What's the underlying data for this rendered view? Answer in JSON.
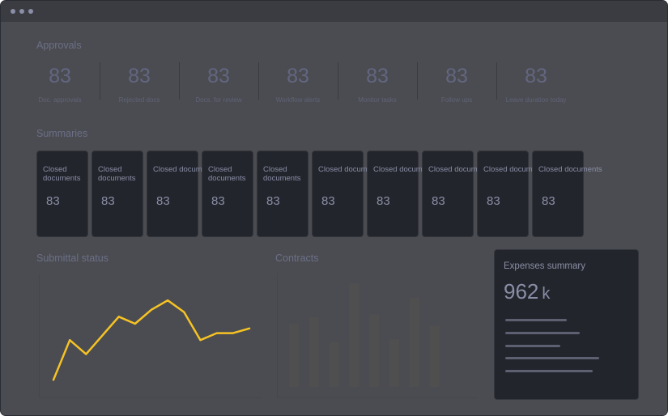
{
  "approvals": {
    "title": "Approvals",
    "kpis": [
      {
        "value": "83",
        "label": "Doc. approvals"
      },
      {
        "value": "83",
        "label": "Rejected docs"
      },
      {
        "value": "83",
        "label": "Docs. for review"
      },
      {
        "value": "83",
        "label": "Workflow alerts"
      },
      {
        "value": "83",
        "label": "Monitor tasks"
      },
      {
        "value": "83",
        "label": "Follow ups"
      },
      {
        "value": "83",
        "label": "Leave duration today"
      }
    ]
  },
  "summaries": {
    "title": "Summaries",
    "cards": [
      {
        "label": "Closed documents",
        "value": "83"
      },
      {
        "label": "Closed documents",
        "value": "83"
      },
      {
        "label": "Closed docum",
        "value": "83"
      },
      {
        "label": "Closed documents",
        "value": "83"
      },
      {
        "label": "Closed documents",
        "value": "83"
      },
      {
        "label": "Closed documents",
        "value": "83"
      },
      {
        "label": "Closed docum",
        "value": "83"
      },
      {
        "label": "Closed documents",
        "value": "83"
      },
      {
        "label": "Closed docum",
        "value": "83"
      },
      {
        "label": "Closed documents",
        "value": "83"
      }
    ]
  },
  "submittal": {
    "title": "Submittal status",
    "series": [
      3,
      20,
      14,
      22,
      30,
      27,
      33,
      37,
      32,
      20,
      23,
      23,
      25
    ],
    "ylim": [
      0,
      45
    ],
    "line_color": "#f6c324"
  },
  "contracts": {
    "title": "Contracts",
    "bars": [
      45,
      50,
      32,
      74,
      52,
      34,
      64,
      44
    ],
    "ylim": [
      0,
      80
    ],
    "bar_color": "#4f4f50"
  },
  "expenses": {
    "title": "Expenses summary",
    "value": "962",
    "unit": "k"
  },
  "colors": {
    "background": "#4b4c51",
    "card": "#23252c",
    "accent": "#f6c324"
  }
}
